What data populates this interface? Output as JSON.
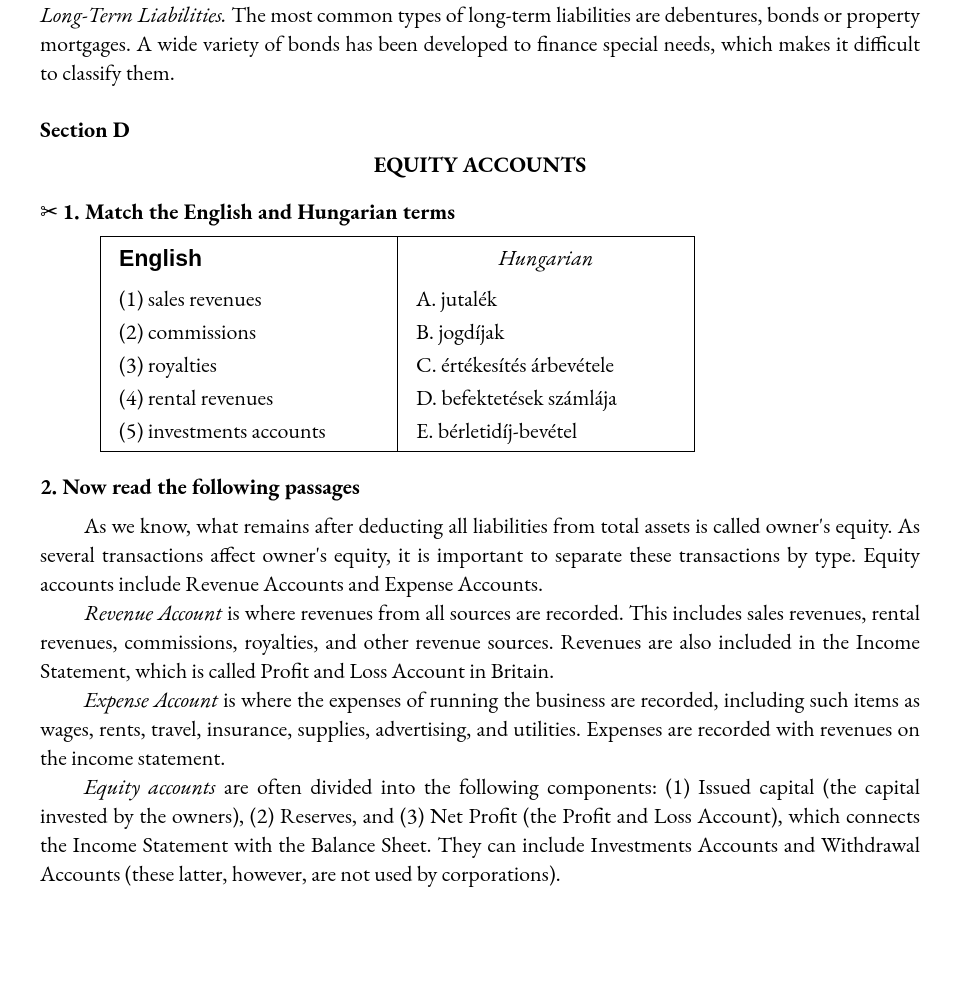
{
  "intro": {
    "lead_italic": "Long-Term Liabilities.",
    "lead_rest": " The most common types of long-term liabilities are debentures, bonds or property mortgages. A wide variety of bonds has been developed to finance special needs, which makes it difficult to classify them."
  },
  "section": {
    "label": "Section D",
    "title": "EQUITY ACCOUNTS"
  },
  "ex1": {
    "icon": "✂",
    "heading": "1. Match the English and Hungarian terms",
    "header_en": "English",
    "header_hu": "Hungarian",
    "rows": [
      {
        "en": "(1) sales revenues",
        "hu": "A. jutalék"
      },
      {
        "en": "(2) commissions",
        "hu": "B. jogdíjak"
      },
      {
        "en": "(3) royalties",
        "hu": "C. értékesítés árbevétele"
      },
      {
        "en": "(4) rental revenues",
        "hu": "D. befektetések számlája"
      },
      {
        "en": "(5) investments accounts",
        "hu": "E. bérletidíj-bevétel"
      }
    ]
  },
  "ex2": {
    "heading": "2. Now read the following passages",
    "p1": "As we know, what remains after deducting all liabilities from total assets is called owner's equity. As several transactions affect owner's equity, it is important to separate these transactions by type. Equity accounts include Revenue Accounts and Expense Accounts.",
    "p2_lead": "Revenue Account",
    "p2_rest": " is where revenues from all sources are recorded. This includes sales revenues, rental revenues, commissions, royalties, and other revenue sources. Revenues are also included in the Income Statement, which is called Profit and Loss Account in Britain.",
    "p3_lead": "Expense Account",
    "p3_rest": " is where the expenses of running the business are recorded, including such items as wages, rents, travel, insurance, supplies, advertising, and utilities. Expenses are recorded with revenues on the income statement.",
    "p4_lead": "Equity accounts",
    "p4_rest": " are often divided into the following components: (1) Issued capital (the capital invested by the owners), (2) Reserves, and (3) Net Profit (the Profit and Loss Account), which connects the Income Statement with the Balance Sheet. They can include Investments Accounts and Withdrawal Accounts (these latter, however, are not used by corporations)."
  }
}
